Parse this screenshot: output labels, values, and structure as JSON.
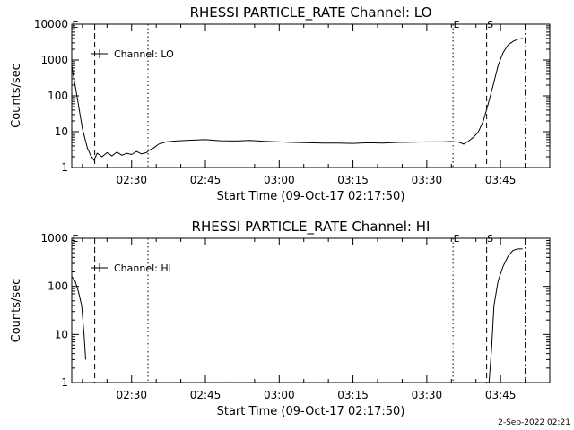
{
  "footer": {
    "stamp": "2-Sep-2022 02:21"
  },
  "chart_data": [
    {
      "type": "line",
      "title": "RHESSI PARTICLE_RATE Channel: LO",
      "xlabel": "Start Time (09-Oct-17 02:17:50)",
      "ylabel": "Counts/sec",
      "yscale": "log",
      "ylim": [
        1,
        10000
      ],
      "xlim": [
        "02:17:50",
        "03:55:00"
      ],
      "xticks": [
        "02:30",
        "02:45",
        "03:00",
        "03:15",
        "03:30",
        "03:45"
      ],
      "yticks": [
        "1",
        "10",
        "100",
        "1000",
        "10000"
      ],
      "legend": {
        "label": "Channel: LO",
        "position": "top-left"
      },
      "markers": [
        {
          "label": "E",
          "time": "02:17:50",
          "style": "solid"
        },
        {
          "label": "",
          "time": "02:22:30",
          "style": "dashed"
        },
        {
          "label": "",
          "time": "02:33:20",
          "style": "dotted"
        },
        {
          "label": "E",
          "time": "03:35:20",
          "style": "dotted"
        },
        {
          "label": "S",
          "time": "03:42:10",
          "style": "dashed"
        },
        {
          "label": "",
          "time": "03:50:00",
          "style": "dashdot"
        }
      ],
      "series": [
        {
          "name": "Channel: LO",
          "x": [
            "02:17:50",
            "02:19:00",
            "02:20:00",
            "02:21:00",
            "02:21:40",
            "02:22:20",
            "02:23:00",
            "02:24:00",
            "02:25:00",
            "02:26:00",
            "02:27:00",
            "02:28:00",
            "02:29:00",
            "02:30:00",
            "02:31:00",
            "02:32:00",
            "02:33:00",
            "02:33:30",
            "02:34:30",
            "02:35:30",
            "02:37:00",
            "02:39:00",
            "02:42:00",
            "02:45:00",
            "02:48:00",
            "02:51:00",
            "02:54:00",
            "02:57:00",
            "03:00:00",
            "03:03:00",
            "03:06:00",
            "03:09:00",
            "03:12:00",
            "03:15:00",
            "03:18:00",
            "03:21:00",
            "03:24:00",
            "03:27:00",
            "03:30:00",
            "03:33:00",
            "03:35:00",
            "03:36:30",
            "03:37:30",
            "03:38:30",
            "03:39:30",
            "03:40:30",
            "03:41:30",
            "03:42:30",
            "03:43:30",
            "03:44:30",
            "03:45:30",
            "03:46:30",
            "03:47:30",
            "03:48:30",
            "03:49:30"
          ],
          "y": [
            700,
            80,
            12,
            3.5,
            2.2,
            1.6,
            2.5,
            2.0,
            2.6,
            2.1,
            2.7,
            2.2,
            2.5,
            2.3,
            2.8,
            2.4,
            2.6,
            3.0,
            3.5,
            4.5,
            5.2,
            5.5,
            5.8,
            6.0,
            5.6,
            5.5,
            5.7,
            5.4,
            5.2,
            5.0,
            4.9,
            4.8,
            4.8,
            4.7,
            4.9,
            4.8,
            5.0,
            5.1,
            5.2,
            5.2,
            5.3,
            5.1,
            4.5,
            5.5,
            7,
            10,
            20,
            60,
            200,
            700,
            1600,
            2600,
            3300,
            3800,
            4000
          ]
        }
      ]
    },
    {
      "type": "line",
      "title": "RHESSI PARTICLE_RATE Channel: HI",
      "xlabel": "Start Time (09-Oct-17 02:17:50)",
      "ylabel": "Counts/sec",
      "yscale": "log",
      "ylim": [
        1,
        1000
      ],
      "xlim": [
        "02:17:50",
        "03:55:00"
      ],
      "xticks": [
        "02:30",
        "02:45",
        "03:00",
        "03:15",
        "03:30",
        "03:45"
      ],
      "yticks": [
        "1",
        "10",
        "100",
        "1000"
      ],
      "legend": {
        "label": "Channel: HI",
        "position": "top-left"
      },
      "markers": [
        {
          "label": "E",
          "time": "02:17:50",
          "style": "solid"
        },
        {
          "label": "",
          "time": "02:22:30",
          "style": "dashed"
        },
        {
          "label": "",
          "time": "02:33:20",
          "style": "dotted"
        },
        {
          "label": "E",
          "time": "03:35:20",
          "style": "dotted"
        },
        {
          "label": "S",
          "time": "03:42:10",
          "style": "dashed"
        },
        {
          "label": "",
          "time": "03:50:00",
          "style": "dashdot"
        }
      ],
      "series": [
        {
          "name": "Channel: HI",
          "segments": [
            {
              "x": [
                "02:17:50",
                "02:18:30",
                "02:19:10",
                "02:19:50",
                "02:20:20",
                "02:20:40"
              ],
              "y": [
                160,
                130,
                80,
                40,
                10,
                3
              ]
            },
            {
              "x": [
                "03:42:40",
                "03:43:10",
                "03:43:40",
                "03:44:30",
                "03:45:30",
                "03:46:30",
                "03:47:30",
                "03:48:30",
                "03:49:30"
              ],
              "y": [
                1,
                5,
                40,
                130,
                260,
                420,
                560,
                600,
                600
              ]
            }
          ]
        }
      ]
    }
  ]
}
